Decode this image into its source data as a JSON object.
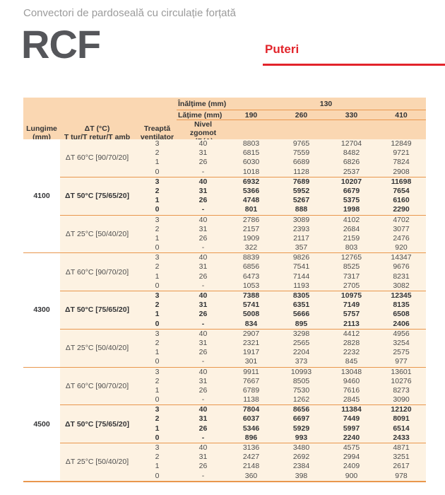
{
  "page": {
    "subtitle": "Convectori de pardoseală cu circulație forțată",
    "product": "RCF",
    "section_label": "Puteri"
  },
  "colors": {
    "header-bg": "#fad7b2",
    "body-bg": "#fdf2e2",
    "line-orange": "#e9974d",
    "accent-red": "#e2242b",
    "text-gray": "#4d4d4d",
    "text-dark": "#333436",
    "subtitle-gray": "#9b9b9b",
    "logo-gray": "#55565a"
  },
  "table": {
    "header": {
      "inaltime_label": "Înălțime (mm)",
      "inaltime_value": "130",
      "latime_label": "Lățime (mm)",
      "width_values": [
        "190",
        "260",
        "330",
        "410"
      ],
      "columns": {
        "lungime": [
          "Lungime",
          "(mm)"
        ],
        "dt": [
          "ΔT (°C)",
          "T tur/T retur/T amb"
        ],
        "treapta": [
          "Treaptă",
          "ventilator"
        ],
        "nivel": [
          "Nivel zgomot",
          "dB(A)"
        ]
      }
    },
    "groups": [
      {
        "lungime": "4100",
        "blocks": [
          {
            "dt_label": "ΔT 60°C [90/70/20]",
            "bold": false,
            "rows": [
              {
                "step": "3",
                "noise": "40",
                "values": [
                  "8803",
                  "9765",
                  "12704",
                  "12849"
                ]
              },
              {
                "step": "2",
                "noise": "31",
                "values": [
                  "6815",
                  "7559",
                  "8482",
                  "9721"
                ]
              },
              {
                "step": "1",
                "noise": "26",
                "values": [
                  "6030",
                  "6689",
                  "6826",
                  "7824"
                ]
              },
              {
                "step": "0",
                "noise": "-",
                "values": [
                  "1018",
                  "1128",
                  "2537",
                  "2908"
                ]
              }
            ]
          },
          {
            "dt_label": "ΔT 50°C [75/65/20]",
            "bold": true,
            "rows": [
              {
                "step": "3",
                "noise": "40",
                "values": [
                  "6932",
                  "7689",
                  "10207",
                  "11698"
                ]
              },
              {
                "step": "2",
                "noise": "31",
                "values": [
                  "5366",
                  "5952",
                  "6679",
                  "7654"
                ]
              },
              {
                "step": "1",
                "noise": "26",
                "values": [
                  "4748",
                  "5267",
                  "5375",
                  "6160"
                ]
              },
              {
                "step": "0",
                "noise": "-",
                "values": [
                  "801",
                  "888",
                  "1998",
                  "2290"
                ]
              }
            ]
          },
          {
            "dt_label": "ΔT 25°C [50/40/20]",
            "bold": false,
            "rows": [
              {
                "step": "3",
                "noise": "40",
                "values": [
                  "2786",
                  "3089",
                  "4102",
                  "4702"
                ]
              },
              {
                "step": "2",
                "noise": "31",
                "values": [
                  "2157",
                  "2393",
                  "2684",
                  "3077"
                ]
              },
              {
                "step": "1",
                "noise": "26",
                "values": [
                  "1909",
                  "2117",
                  "2159",
                  "2476"
                ]
              },
              {
                "step": "0",
                "noise": "-",
                "values": [
                  "322",
                  "357",
                  "803",
                  "920"
                ]
              }
            ]
          }
        ]
      },
      {
        "lungime": "4300",
        "blocks": [
          {
            "dt_label": "ΔT 60°C [90/70/20]",
            "bold": false,
            "rows": [
              {
                "step": "3",
                "noise": "40",
                "values": [
                  "8839",
                  "9826",
                  "12765",
                  "14347"
                ]
              },
              {
                "step": "2",
                "noise": "31",
                "values": [
                  "6856",
                  "7541",
                  "8525",
                  "9676"
                ]
              },
              {
                "step": "1",
                "noise": "26",
                "values": [
                  "6473",
                  "7144",
                  "7317",
                  "8231"
                ]
              },
              {
                "step": "0",
                "noise": "-",
                "values": [
                  "1053",
                  "1193",
                  "2705",
                  "3082"
                ]
              }
            ]
          },
          {
            "dt_label": "ΔT 50°C [75/65/20]",
            "bold": true,
            "rows": [
              {
                "step": "3",
                "noise": "40",
                "values": [
                  "7388",
                  "8305",
                  "10975",
                  "12345"
                ]
              },
              {
                "step": "2",
                "noise": "31",
                "values": [
                  "5741",
                  "6351",
                  "7149",
                  "8135"
                ]
              },
              {
                "step": "1",
                "noise": "26",
                "values": [
                  "5008",
                  "5666",
                  "5757",
                  "6508"
                ]
              },
              {
                "step": "0",
                "noise": "-",
                "values": [
                  "834",
                  "895",
                  "2113",
                  "2406"
                ]
              }
            ]
          },
          {
            "dt_label": "ΔT 25°C [50/40/20]",
            "bold": false,
            "rows": [
              {
                "step": "3",
                "noise": "40",
                "values": [
                  "2907",
                  "3298",
                  "4412",
                  "4956"
                ]
              },
              {
                "step": "2",
                "noise": "31",
                "values": [
                  "2321",
                  "2565",
                  "2828",
                  "3254"
                ]
              },
              {
                "step": "1",
                "noise": "26",
                "values": [
                  "1917",
                  "2204",
                  "2232",
                  "2575"
                ]
              },
              {
                "step": "0",
                "noise": "-",
                "values": [
                  "301",
                  "373",
                  "845",
                  "977"
                ]
              }
            ]
          }
        ]
      },
      {
        "lungime": "4500",
        "blocks": [
          {
            "dt_label": "ΔT 60°C [90/70/20]",
            "bold": false,
            "rows": [
              {
                "step": "3",
                "noise": "40",
                "values": [
                  "9911",
                  "10993",
                  "13048",
                  "13601"
                ]
              },
              {
                "step": "2",
                "noise": "31",
                "values": [
                  "7667",
                  "8505",
                  "9460",
                  "10276"
                ]
              },
              {
                "step": "1",
                "noise": "26",
                "values": [
                  "6789",
                  "7530",
                  "7616",
                  "8273"
                ]
              },
              {
                "step": "0",
                "noise": "-",
                "values": [
                  "1138",
                  "1262",
                  "2845",
                  "3090"
                ]
              }
            ]
          },
          {
            "dt_label": "ΔT 50°C [75/65/20]",
            "bold": true,
            "rows": [
              {
                "step": "3",
                "noise": "40",
                "values": [
                  "7804",
                  "8656",
                  "11384",
                  "12120"
                ]
              },
              {
                "step": "2",
                "noise": "31",
                "values": [
                  "6037",
                  "6697",
                  "7449",
                  "8091"
                ]
              },
              {
                "step": "1",
                "noise": "26",
                "values": [
                  "5346",
                  "5929",
                  "5997",
                  "6514"
                ]
              },
              {
                "step": "0",
                "noise": "-",
                "values": [
                  "896",
                  "993",
                  "2240",
                  "2433"
                ]
              }
            ]
          },
          {
            "dt_label": "ΔT 25°C [50/40/20]",
            "bold": false,
            "rows": [
              {
                "step": "3",
                "noise": "40",
                "values": [
                  "3136",
                  "3480",
                  "4575",
                  "4871"
                ]
              },
              {
                "step": "2",
                "noise": "31",
                "values": [
                  "2427",
                  "2692",
                  "2994",
                  "3251"
                ]
              },
              {
                "step": "1",
                "noise": "26",
                "values": [
                  "2148",
                  "2384",
                  "2409",
                  "2617"
                ]
              },
              {
                "step": "0",
                "noise": "-",
                "values": [
                  "360",
                  "398",
                  "900",
                  "978"
                ]
              }
            ]
          }
        ]
      }
    ]
  }
}
